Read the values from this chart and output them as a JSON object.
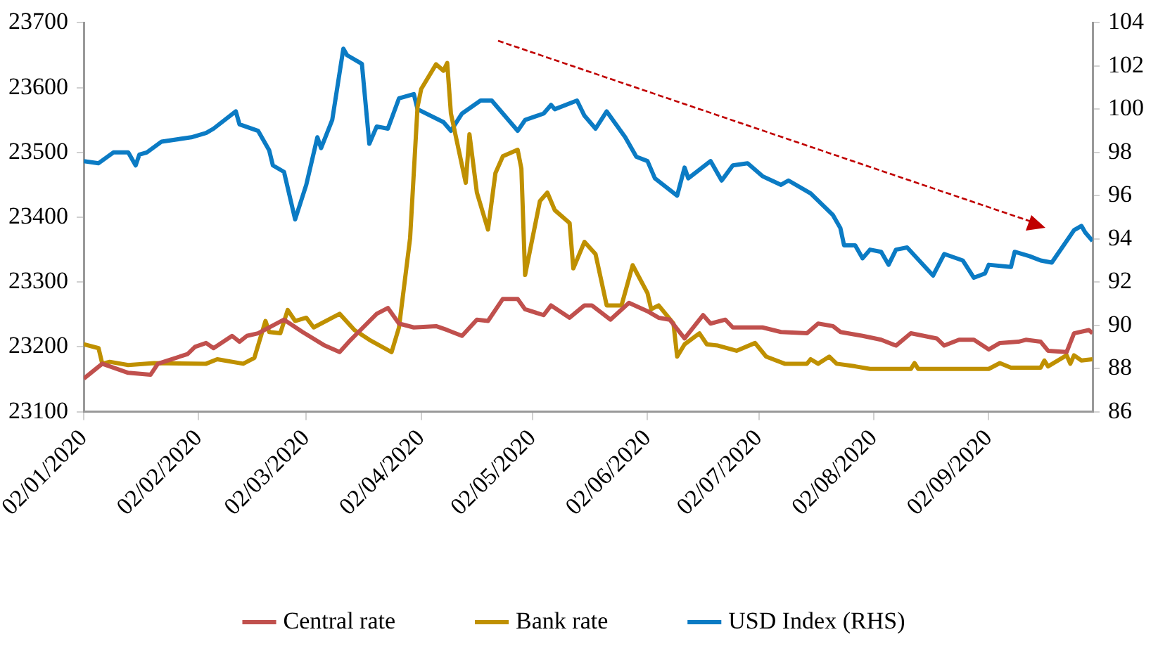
{
  "chart_data": {
    "type": "line",
    "xlim": [
      "2020-01-02",
      "2020-09-30"
    ],
    "xticks": [
      {
        "value": "2020-01-02",
        "label": "02/01/2020"
      },
      {
        "value": "2020-02-02",
        "label": "02/02/2020"
      },
      {
        "value": "2020-03-02",
        "label": "02/03/2020"
      },
      {
        "value": "2020-04-02",
        "label": "02/04/2020"
      },
      {
        "value": "2020-05-02",
        "label": "02/05/2020"
      },
      {
        "value": "2020-06-02",
        "label": "02/06/2020"
      },
      {
        "value": "2020-07-02",
        "label": "02/07/2020"
      },
      {
        "value": "2020-08-02",
        "label": "02/08/2020"
      },
      {
        "value": "2020-09-02",
        "label": "02/09/2020"
      }
    ],
    "ylim": [
      23100,
      23700
    ],
    "yticks": [
      23100,
      23200,
      23300,
      23400,
      23500,
      23600,
      23700
    ],
    "y2lim": [
      86,
      104
    ],
    "y2ticks": [
      86,
      88,
      90,
      92,
      94,
      96,
      98,
      100,
      102,
      104
    ],
    "grid": false,
    "legend": "bottom",
    "marker": "none",
    "line_style": "solid",
    "series": [
      {
        "name": "Central rate",
        "color": "#c0504d",
        "x": [
          "2020-01-02",
          "2020-01-07",
          "2020-01-14",
          "2020-01-20",
          "2020-01-22",
          "2020-01-30",
          "2020-02-01",
          "2020-02-04",
          "2020-02-06",
          "2020-02-11",
          "2020-02-13",
          "2020-02-15",
          "2020-02-18",
          "2020-02-25",
          "2020-03-01",
          "2020-03-07",
          "2020-03-11",
          "2020-03-14",
          "2020-03-21",
          "2020-03-24",
          "2020-03-27",
          "2020-03-31",
          "2020-04-06",
          "2020-04-09",
          "2020-04-13",
          "2020-04-17",
          "2020-04-20",
          "2020-04-24",
          "2020-04-28",
          "2020-04-30",
          "2020-05-05",
          "2020-05-07",
          "2020-05-12",
          "2020-05-16",
          "2020-05-18",
          "2020-05-23",
          "2020-05-28",
          "2020-06-02",
          "2020-06-05",
          "2020-06-08",
          "2020-06-12",
          "2020-06-17",
          "2020-06-19",
          "2020-06-23",
          "2020-06-25",
          "2020-07-03",
          "2020-07-08",
          "2020-07-15",
          "2020-07-18",
          "2020-07-22",
          "2020-07-24",
          "2020-07-30",
          "2020-08-04",
          "2020-08-08",
          "2020-08-12",
          "2020-08-19",
          "2020-08-21",
          "2020-08-25",
          "2020-08-29",
          "2020-09-02",
          "2020-09-05",
          "2020-09-10",
          "2020-09-12",
          "2020-09-16",
          "2020-09-18",
          "2020-09-23",
          "2020-09-25",
          "2020-09-29",
          "2020-09-30"
        ],
        "values": [
          23151,
          23174,
          23160,
          23157,
          23174,
          23189,
          23200,
          23206,
          23198,
          23217,
          23208,
          23217,
          23221,
          23242,
          23223,
          23202,
          23192,
          23211,
          23251,
          23260,
          23236,
          23230,
          23232,
          23226,
          23217,
          23242,
          23240,
          23274,
          23274,
          23258,
          23249,
          23264,
          23245,
          23264,
          23264,
          23242,
          23268,
          23255,
          23245,
          23242,
          23213,
          23249,
          23236,
          23242,
          23230,
          23230,
          23223,
          23221,
          23236,
          23232,
          23223,
          23217,
          23211,
          23202,
          23221,
          23213,
          23202,
          23211,
          23211,
          23196,
          23206,
          23208,
          23211,
          23208,
          23194,
          23192,
          23221,
          23226,
          23221
        ]
      },
      {
        "name": "Bank rate",
        "color": "#bf9000",
        "x": [
          "2020-01-02",
          "2020-01-06",
          "2020-01-07",
          "2020-01-09",
          "2020-01-14",
          "2020-01-21",
          "2020-02-04",
          "2020-02-07",
          "2020-02-14",
          "2020-02-17",
          "2020-02-20",
          "2020-02-21",
          "2020-02-24",
          "2020-02-26",
          "2020-02-28",
          "2020-03-02",
          "2020-03-04",
          "2020-03-11",
          "2020-03-15",
          "2020-03-19",
          "2020-03-25",
          "2020-03-27",
          "2020-03-30",
          "2020-04-01",
          "2020-04-02",
          "2020-04-06",
          "2020-04-08",
          "2020-04-09",
          "2020-04-10",
          "2020-04-14",
          "2020-04-15",
          "2020-04-17",
          "2020-04-20",
          "2020-04-22",
          "2020-04-24",
          "2020-04-28",
          "2020-04-29",
          "2020-04-30",
          "2020-05-04",
          "2020-05-06",
          "2020-05-08",
          "2020-05-12",
          "2020-05-13",
          "2020-05-16",
          "2020-05-19",
          "2020-05-22",
          "2020-05-26",
          "2020-05-29",
          "2020-06-02",
          "2020-06-03",
          "2020-06-05",
          "2020-06-09",
          "2020-06-10",
          "2020-06-12",
          "2020-06-16",
          "2020-06-18",
          "2020-06-21",
          "2020-06-26",
          "2020-07-01",
          "2020-07-04",
          "2020-07-09",
          "2020-07-15",
          "2020-07-16",
          "2020-07-18",
          "2020-07-21",
          "2020-07-23",
          "2020-07-28",
          "2020-08-01",
          "2020-08-12",
          "2020-08-13",
          "2020-08-14",
          "2020-09-02",
          "2020-09-05",
          "2020-09-08",
          "2020-09-16",
          "2020-09-17",
          "2020-09-18",
          "2020-09-23",
          "2020-09-24",
          "2020-09-25",
          "2020-09-27",
          "2020-09-30"
        ],
        "values": [
          23204,
          23198,
          23174,
          23177,
          23172,
          23175,
          23174,
          23181,
          23174,
          23183,
          23240,
          23223,
          23221,
          23257,
          23240,
          23245,
          23230,
          23251,
          23226,
          23211,
          23192,
          23230,
          23368,
          23570,
          23598,
          23636,
          23626,
          23638,
          23560,
          23453,
          23528,
          23438,
          23381,
          23468,
          23494,
          23504,
          23475,
          23311,
          23425,
          23438,
          23411,
          23391,
          23321,
          23362,
          23343,
          23264,
          23264,
          23326,
          23283,
          23258,
          23264,
          23236,
          23185,
          23204,
          23221,
          23204,
          23202,
          23194,
          23206,
          23185,
          23174,
          23174,
          23181,
          23174,
          23185,
          23174,
          23170,
          23166,
          23166,
          23175,
          23166,
          23166,
          23175,
          23168,
          23168,
          23179,
          23170,
          23187,
          23174,
          23187,
          23179,
          23181
        ]
      },
      {
        "name": "USD Index (RHS)",
        "color": "#0b7bc4",
        "axis": "y2",
        "x": [
          "2020-01-02",
          "2020-01-06",
          "2020-01-10",
          "2020-01-14",
          "2020-01-16",
          "2020-01-17",
          "2020-01-19",
          "2020-01-23",
          "2020-01-31",
          "2020-02-04",
          "2020-02-06",
          "2020-02-12",
          "2020-02-13",
          "2020-02-18",
          "2020-02-21",
          "2020-02-22",
          "2020-02-25",
          "2020-02-28",
          "2020-03-02",
          "2020-03-05",
          "2020-03-06",
          "2020-03-09",
          "2020-03-12",
          "2020-03-13",
          "2020-03-17",
          "2020-03-19",
          "2020-03-21",
          "2020-03-24",
          "2020-03-27",
          "2020-03-31",
          "2020-04-01",
          "2020-04-08",
          "2020-04-10",
          "2020-04-13",
          "2020-04-18",
          "2020-04-21",
          "2020-04-28",
          "2020-04-30",
          "2020-05-05",
          "2020-05-07",
          "2020-05-08",
          "2020-05-14",
          "2020-05-16",
          "2020-05-19",
          "2020-05-22",
          "2020-05-27",
          "2020-05-30",
          "2020-06-02",
          "2020-06-04",
          "2020-06-10",
          "2020-06-12",
          "2020-06-13",
          "2020-06-19",
          "2020-06-22",
          "2020-06-25",
          "2020-06-29",
          "2020-07-03",
          "2020-07-08",
          "2020-07-10",
          "2020-07-16",
          "2020-07-22",
          "2020-07-24",
          "2020-07-25",
          "2020-07-28",
          "2020-07-30",
          "2020-08-01",
          "2020-08-04",
          "2020-08-06",
          "2020-08-08",
          "2020-08-11",
          "2020-08-18",
          "2020-08-21",
          "2020-08-26",
          "2020-08-29",
          "2020-09-01",
          "2020-09-02",
          "2020-09-08",
          "2020-09-09",
          "2020-09-13",
          "2020-09-16",
          "2020-09-19",
          "2020-09-25",
          "2020-09-27",
          "2020-09-28",
          "2020-09-30"
        ],
        "values": [
          97.6,
          97.5,
          98.0,
          98.0,
          97.4,
          97.9,
          98.0,
          98.5,
          98.7,
          98.9,
          99.1,
          99.9,
          99.3,
          99.0,
          98.1,
          97.4,
          97.1,
          94.9,
          96.5,
          98.7,
          98.2,
          99.5,
          102.8,
          102.5,
          102.1,
          98.4,
          99.2,
          99.1,
          100.5,
          100.7,
          100.0,
          99.4,
          99.0,
          99.8,
          100.4,
          100.4,
          99.0,
          99.5,
          99.8,
          100.2,
          100.0,
          100.4,
          99.7,
          99.1,
          99.9,
          98.7,
          97.8,
          97.6,
          96.8,
          96.0,
          97.3,
          96.8,
          97.6,
          96.7,
          97.4,
          97.5,
          96.9,
          96.5,
          96.7,
          96.1,
          95.1,
          94.5,
          93.7,
          93.7,
          93.1,
          93.5,
          93.4,
          92.8,
          93.5,
          93.6,
          92.3,
          93.3,
          93.0,
          92.2,
          92.4,
          92.8,
          92.7,
          93.4,
          93.2,
          93.0,
          92.9,
          94.4,
          94.6,
          94.3,
          93.9
        ]
      }
    ]
  }
}
